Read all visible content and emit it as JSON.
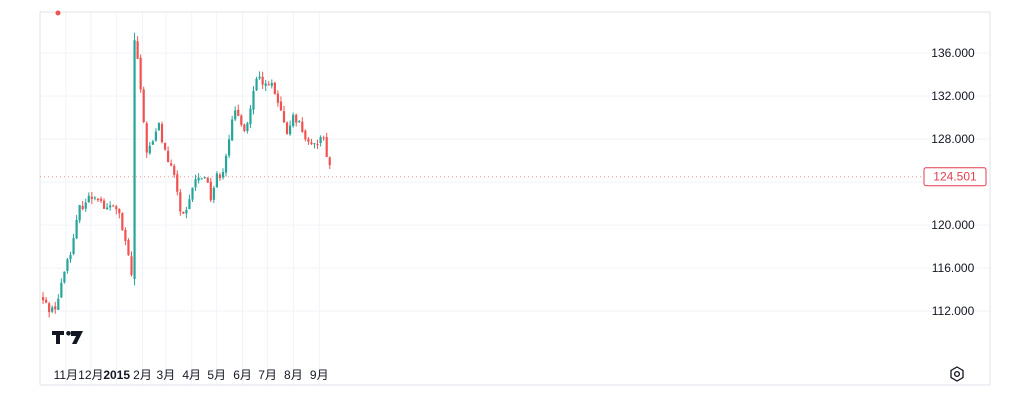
{
  "chart_data": {
    "type": "candlestick",
    "title": "",
    "xlabel": "",
    "ylabel": "",
    "ylim": [
      108.0,
      138.5
    ],
    "y_ticks": [
      "112.000",
      "116.000",
      "120.000",
      "124.000",
      "128.000",
      "132.000",
      "136.000"
    ],
    "x_ticks": [
      "11月",
      "12月",
      "2015",
      "2月",
      "3月",
      "4月",
      "5月",
      "6月",
      "7月",
      "8月",
      "9月"
    ],
    "bold_x_ticks": [
      "2015"
    ],
    "last_price_label": "124.501",
    "grid": true,
    "legend": "none",
    "colors": {
      "up": "#26a69a",
      "down": "#ef5350",
      "grid": "#f0f3fa",
      "axis": "#e0e3eb",
      "text": "#131722"
    },
    "close_path": [
      [
        "2014-10-01",
        113.3
      ],
      [
        "2014-10-10",
        112.4
      ],
      [
        "2014-10-17",
        112.1
      ],
      [
        "2014-10-24",
        113.4
      ],
      [
        "2014-10-31",
        116.1
      ],
      [
        "2014-11-10",
        118.5
      ],
      [
        "2014-11-17",
        121.5
      ],
      [
        "2014-11-24",
        122.2
      ],
      [
        "2014-12-01",
        122.6
      ],
      [
        "2014-12-08",
        122.9
      ],
      [
        "2014-12-12",
        122.4
      ],
      [
        "2014-12-19",
        121.3
      ],
      [
        "2014-12-26",
        121.8
      ],
      [
        "2015-01-02",
        121.6
      ],
      [
        "2015-01-09",
        119.0
      ],
      [
        "2015-01-16",
        116.8
      ],
      [
        "2015-01-20",
        114.8
      ],
      [
        "2015-01-21",
        137.5
      ],
      [
        "2015-01-26",
        135.5
      ],
      [
        "2015-01-30",
        132.0
      ],
      [
        "2015-02-06",
        127.0
      ],
      [
        "2015-02-13",
        127.5
      ],
      [
        "2015-02-20",
        129.5
      ],
      [
        "2015-02-27",
        127.0
      ],
      [
        "2015-03-06",
        125.5
      ],
      [
        "2015-03-13",
        124.0
      ],
      [
        "2015-03-20",
        120.5
      ],
      [
        "2015-03-27",
        121.2
      ],
      [
        "2015-04-03",
        124.0
      ],
      [
        "2015-04-10",
        124.3
      ],
      [
        "2015-04-17",
        124.8
      ],
      [
        "2015-04-24",
        122.6
      ],
      [
        "2015-05-01",
        124.5
      ],
      [
        "2015-05-08",
        125.0
      ],
      [
        "2015-05-15",
        128.0
      ],
      [
        "2015-05-22",
        130.3
      ],
      [
        "2015-05-29",
        130.0
      ],
      [
        "2015-06-05",
        128.7
      ],
      [
        "2015-06-12",
        131.5
      ],
      [
        "2015-06-19",
        133.8
      ],
      [
        "2015-06-26",
        132.8
      ],
      [
        "2015-07-03",
        133.5
      ],
      [
        "2015-07-10",
        132.0
      ],
      [
        "2015-07-17",
        130.5
      ],
      [
        "2015-07-24",
        128.0
      ],
      [
        "2015-07-31",
        130.5
      ],
      [
        "2015-08-07",
        129.6
      ],
      [
        "2015-08-14",
        128.5
      ],
      [
        "2015-08-21",
        127.0
      ],
      [
        "2015-08-28",
        127.5
      ],
      [
        "2015-09-04",
        128.8
      ],
      [
        "2015-09-11",
        126.3
      ],
      [
        "2015-09-17",
        124.5
      ]
    ]
  }
}
